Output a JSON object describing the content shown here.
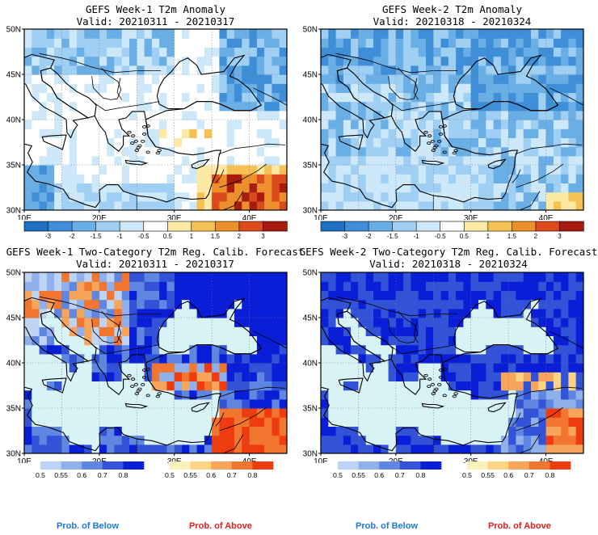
{
  "panels": [
    {
      "id": "w1-anom",
      "title": "GEFS Week-1 T2m Anomaly",
      "valid": "Valid: 20210311 - 20210317",
      "lat_labels": [
        "50N",
        "45N",
        "40N",
        "35N",
        "30N"
      ],
      "lon_labels": [
        "10E",
        "20E",
        "30E",
        "40E"
      ],
      "type": "anomaly"
    },
    {
      "id": "w2-anom",
      "title": "GEFS Week-2 T2m Anomaly",
      "valid": "Valid: 20210318 - 20210324",
      "lat_labels": [
        "50N",
        "45N",
        "40N",
        "35N",
        "30N"
      ],
      "lon_labels": [
        "10E",
        "20E",
        "30E",
        "40E"
      ],
      "type": "anomaly"
    },
    {
      "id": "w1-prob",
      "title": "GEFS Week-1 Two-Category T2m Reg. Calib. Forecast",
      "valid": "Valid: 20210311 - 20210317",
      "lat_labels": [
        "50N",
        "45N",
        "40N",
        "35N",
        "30N"
      ],
      "lon_labels": [
        "10E",
        "20E",
        "30E",
        "40E"
      ],
      "type": "probability"
    },
    {
      "id": "w2-prob",
      "title": "GEFS Week-2 Two-Category T2m Reg. Calib. Forecast",
      "valid": "Valid: 20210318 - 20210324",
      "lat_labels": [
        "50N",
        "45N",
        "40N",
        "35N",
        "30N"
      ],
      "lon_labels": [
        "10E",
        "20E",
        "30E",
        "40E"
      ],
      "type": "probability"
    }
  ],
  "anomaly_colorbar": {
    "labels": [
      "-3",
      "-2",
      "-1.5",
      "-1",
      "-0.5",
      "0.5",
      "1",
      "1.5",
      "2",
      "3"
    ],
    "colors": [
      "#1f6fc4",
      "#3f8ed8",
      "#6aaee6",
      "#9fcff2",
      "#cde8f8",
      "#ffffff",
      "#fde9a3",
      "#f5c155",
      "#ec8f2c",
      "#db4a1c",
      "#a81c10"
    ]
  },
  "prob_colorbar": {
    "labels": [
      "0.5",
      "0.55",
      "0.6",
      "0.7",
      "0.8"
    ],
    "below_colors": [
      "#bfd4f2",
      "#8fb0ea",
      "#5f86e0",
      "#3253d8",
      "#0a1ed8"
    ],
    "above_colors": [
      "#fff2b8",
      "#fbd385",
      "#f7a55a",
      "#f2762f",
      "#ee3c10"
    ]
  },
  "prob_labels": {
    "below": "Prob. of Below",
    "above": "Prob. of Above",
    "below_color": "#1e78e0",
    "above_color": "#e01e1e"
  },
  "colors": {
    "sea_light": "#d8f3f6",
    "land_white": "#ffffff",
    "cold_mid": "#6aaee6",
    "prob_blue": "#2f46d6"
  }
}
